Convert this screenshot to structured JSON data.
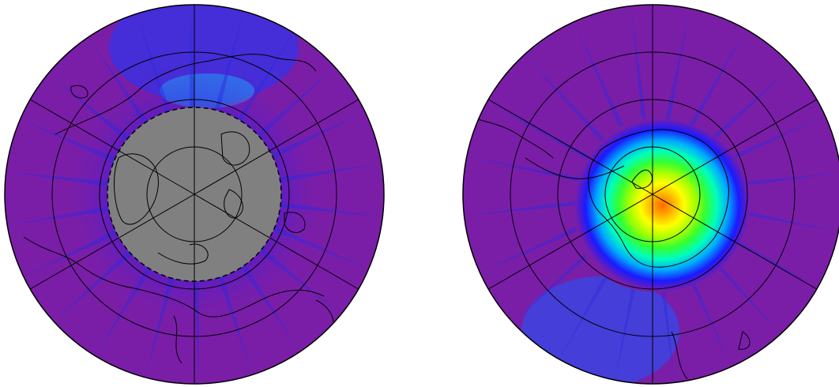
{
  "figure": {
    "panels": [
      {
        "id": "north",
        "hemisphere": "north",
        "background_color": "#7a1ea8",
        "polar_cap": {
          "visible": true,
          "color": "#808080",
          "border_style": "dashed"
        },
        "gradient_stops": [],
        "graticule": {
          "rings": 3,
          "meridians": 6
        }
      },
      {
        "id": "south",
        "hemisphere": "south",
        "background_color": "#7a1ea8",
        "polar_cap": {
          "visible": false
        },
        "gradient_stops": [
          "#ff6a00",
          "#ffb000",
          "#ffff00",
          "#a8ff00",
          "#33ff33",
          "#00ffbb",
          "#00aaff",
          "#1a1aff",
          "#7a1ea8"
        ],
        "graticule": {
          "rings": 3,
          "meridians": 6
        }
      }
    ],
    "colors": {
      "field": "#7a1ea8",
      "streak": "#2a2ae0",
      "coast": "#000000",
      "cap": "#808080"
    }
  }
}
